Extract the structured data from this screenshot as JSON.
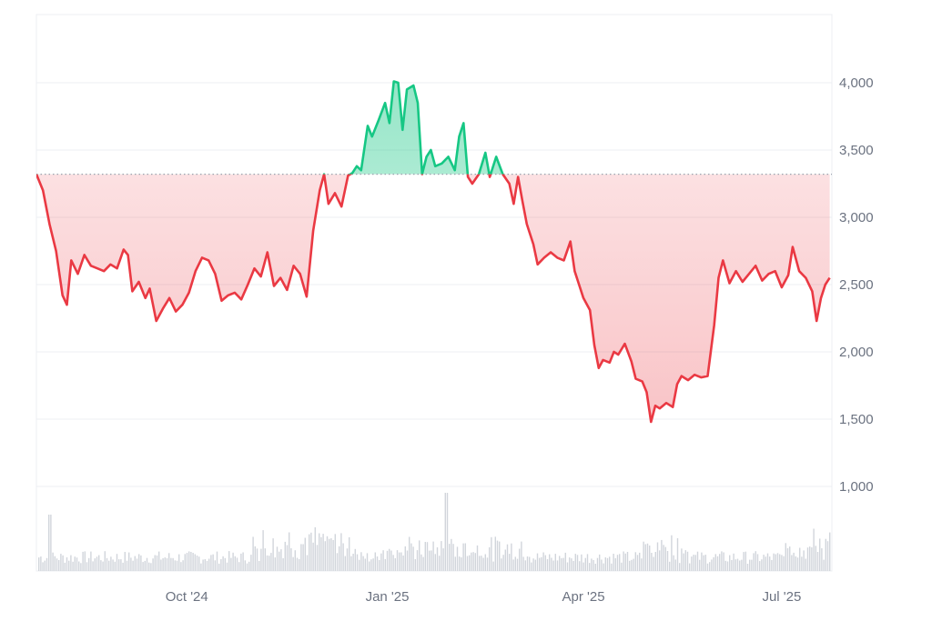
{
  "chart_data": {
    "type": "line",
    "baseline": 3320,
    "ylim": [
      1000,
      4400
    ],
    "y_ticks": [
      {
        "value": 4000,
        "label": "4,000"
      },
      {
        "value": 3500,
        "label": "3,500"
      },
      {
        "value": 3000,
        "label": "3,000"
      },
      {
        "value": 2500,
        "label": "2,500"
      },
      {
        "value": 2000,
        "label": "2,000"
      },
      {
        "value": 1500,
        "label": "1,500"
      },
      {
        "value": 1000,
        "label": "1,000"
      }
    ],
    "x_ticks": [
      {
        "date": "2024-10-01",
        "label": "Oct '24"
      },
      {
        "date": "2025-01-01",
        "label": "Jan '25"
      },
      {
        "date": "2025-04-01",
        "label": "Apr '25"
      },
      {
        "date": "2025-07-01",
        "label": "Jul '25"
      }
    ],
    "xlim": [
      "2024-07-24",
      "2025-07-24"
    ],
    "colors": {
      "above": "#16c784",
      "below": "#ea3943",
      "above_fill": "#16c784",
      "below_fill": "#ea3943",
      "volume": "#d1d5db",
      "grid": "#eceff3",
      "baseline": "#9ca3af"
    },
    "points": [
      [
        "2024-07-24",
        3320
      ],
      [
        "2024-07-27",
        3200
      ],
      [
        "2024-07-30",
        2950
      ],
      [
        "2024-08-02",
        2750
      ],
      [
        "2024-08-05",
        2420
      ],
      [
        "2024-08-07",
        2350
      ],
      [
        "2024-08-09",
        2680
      ],
      [
        "2024-08-12",
        2580
      ],
      [
        "2024-08-15",
        2720
      ],
      [
        "2024-08-18",
        2640
      ],
      [
        "2024-08-21",
        2620
      ],
      [
        "2024-08-24",
        2600
      ],
      [
        "2024-08-27",
        2650
      ],
      [
        "2024-08-30",
        2620
      ],
      [
        "2024-09-02",
        2760
      ],
      [
        "2024-09-04",
        2720
      ],
      [
        "2024-09-06",
        2450
      ],
      [
        "2024-09-09",
        2520
      ],
      [
        "2024-09-12",
        2400
      ],
      [
        "2024-09-14",
        2470
      ],
      [
        "2024-09-17",
        2230
      ],
      [
        "2024-09-20",
        2320
      ],
      [
        "2024-09-23",
        2400
      ],
      [
        "2024-09-26",
        2300
      ],
      [
        "2024-09-29",
        2350
      ],
      [
        "2024-10-02",
        2440
      ],
      [
        "2024-10-05",
        2600
      ],
      [
        "2024-10-08",
        2700
      ],
      [
        "2024-10-11",
        2680
      ],
      [
        "2024-10-14",
        2580
      ],
      [
        "2024-10-17",
        2380
      ],
      [
        "2024-10-20",
        2420
      ],
      [
        "2024-10-23",
        2440
      ],
      [
        "2024-10-26",
        2390
      ],
      [
        "2024-10-29",
        2500
      ],
      [
        "2024-11-01",
        2620
      ],
      [
        "2024-11-04",
        2560
      ],
      [
        "2024-11-07",
        2740
      ],
      [
        "2024-11-10",
        2490
      ],
      [
        "2024-11-13",
        2550
      ],
      [
        "2024-11-16",
        2460
      ],
      [
        "2024-11-19",
        2640
      ],
      [
        "2024-11-22",
        2580
      ],
      [
        "2024-11-25",
        2410
      ],
      [
        "2024-11-28",
        2900
      ],
      [
        "2024-12-01",
        3200
      ],
      [
        "2024-12-03",
        3320
      ],
      [
        "2024-12-05",
        3100
      ],
      [
        "2024-12-08",
        3180
      ],
      [
        "2024-12-11",
        3080
      ],
      [
        "2024-12-14",
        3310
      ],
      [
        "2024-12-16",
        3330
      ],
      [
        "2024-12-18",
        3380
      ],
      [
        "2024-12-20",
        3350
      ],
      [
        "2024-12-23",
        3680
      ],
      [
        "2024-12-25",
        3600
      ],
      [
        "2024-12-28",
        3720
      ],
      [
        "2024-12-31",
        3850
      ],
      [
        "2025-01-02",
        3700
      ],
      [
        "2025-01-04",
        4010
      ],
      [
        "2025-01-06",
        4000
      ],
      [
        "2025-01-08",
        3650
      ],
      [
        "2025-01-10",
        3950
      ],
      [
        "2025-01-13",
        3980
      ],
      [
        "2025-01-15",
        3850
      ],
      [
        "2025-01-17",
        3320
      ],
      [
        "2025-01-19",
        3450
      ],
      [
        "2025-01-21",
        3500
      ],
      [
        "2025-01-23",
        3380
      ],
      [
        "2025-01-26",
        3400
      ],
      [
        "2025-01-29",
        3450
      ],
      [
        "2025-02-01",
        3350
      ],
      [
        "2025-02-03",
        3600
      ],
      [
        "2025-02-05",
        3700
      ],
      [
        "2025-02-07",
        3300
      ],
      [
        "2025-02-09",
        3250
      ],
      [
        "2025-02-12",
        3320
      ],
      [
        "2025-02-15",
        3480
      ],
      [
        "2025-02-17",
        3300
      ],
      [
        "2025-02-20",
        3450
      ],
      [
        "2025-02-23",
        3320
      ],
      [
        "2025-02-26",
        3250
      ],
      [
        "2025-02-28",
        3100
      ],
      [
        "2025-03-02",
        3300
      ],
      [
        "2025-03-04",
        3120
      ],
      [
        "2025-03-06",
        2950
      ],
      [
        "2025-03-09",
        2800
      ],
      [
        "2025-03-11",
        2650
      ],
      [
        "2025-03-14",
        2700
      ],
      [
        "2025-03-17",
        2740
      ],
      [
        "2025-03-20",
        2700
      ],
      [
        "2025-03-23",
        2680
      ],
      [
        "2025-03-26",
        2820
      ],
      [
        "2025-03-28",
        2600
      ],
      [
        "2025-03-30",
        2500
      ],
      [
        "2025-04-01",
        2400
      ],
      [
        "2025-04-04",
        2310
      ],
      [
        "2025-04-06",
        2050
      ],
      [
        "2025-04-08",
        1880
      ],
      [
        "2025-04-10",
        1940
      ],
      [
        "2025-04-13",
        1920
      ],
      [
        "2025-04-15",
        2000
      ],
      [
        "2025-04-17",
        1980
      ],
      [
        "2025-04-20",
        2060
      ],
      [
        "2025-04-23",
        1930
      ],
      [
        "2025-04-25",
        1800
      ],
      [
        "2025-04-28",
        1780
      ],
      [
        "2025-04-30",
        1700
      ],
      [
        "2025-05-02",
        1480
      ],
      [
        "2025-05-04",
        1600
      ],
      [
        "2025-05-06",
        1580
      ],
      [
        "2025-05-09",
        1620
      ],
      [
        "2025-05-12",
        1590
      ],
      [
        "2025-05-14",
        1760
      ],
      [
        "2025-05-16",
        1820
      ],
      [
        "2025-05-19",
        1790
      ],
      [
        "2025-05-22",
        1830
      ],
      [
        "2025-05-25",
        1810
      ],
      [
        "2025-05-28",
        1820
      ],
      [
        "2025-05-31",
        2200
      ],
      [
        "2025-06-02",
        2550
      ],
      [
        "2025-06-04",
        2680
      ],
      [
        "2025-06-07",
        2510
      ],
      [
        "2025-06-10",
        2600
      ],
      [
        "2025-06-13",
        2520
      ],
      [
        "2025-06-16",
        2580
      ],
      [
        "2025-06-19",
        2640
      ],
      [
        "2025-06-22",
        2530
      ],
      [
        "2025-06-25",
        2580
      ],
      [
        "2025-06-28",
        2600
      ],
      [
        "2025-07-01",
        2480
      ],
      [
        "2025-07-04",
        2570
      ],
      [
        "2025-07-06",
        2780
      ],
      [
        "2025-07-09",
        2600
      ],
      [
        "2025-07-12",
        2550
      ],
      [
        "2025-07-15",
        2450
      ],
      [
        "2025-07-17",
        2230
      ],
      [
        "2025-07-19",
        2400
      ],
      [
        "2025-07-21",
        2500
      ],
      [
        "2025-07-23",
        2550
      ]
    ]
  }
}
